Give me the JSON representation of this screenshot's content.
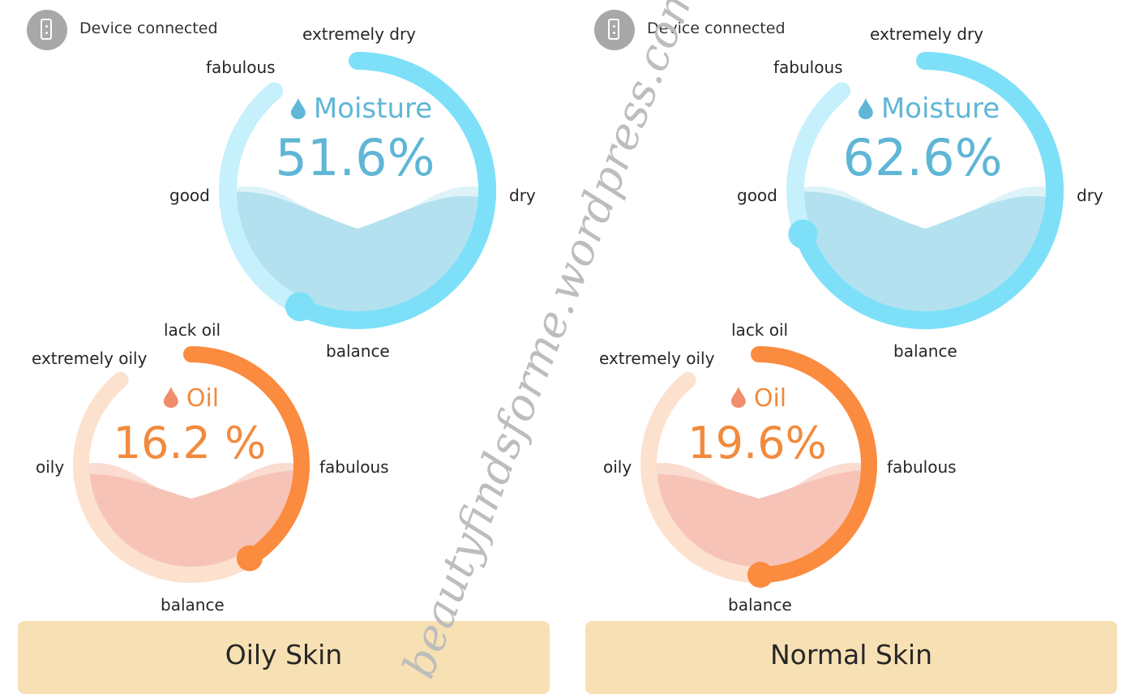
{
  "status": {
    "device_text": "Device connected"
  },
  "watermark": "beautyfindsforme.wordpress.com",
  "colors": {
    "moisture_accent": "#7de0f8",
    "moisture_track": "#c6f0fb",
    "moisture_text": "#5fb6d6",
    "moisture_water": "#b3e1ef",
    "oil_accent": "#fb8b3f",
    "oil_track": "#fde1cf",
    "oil_text": "#f28a3d",
    "oil_water": "#f7c3b7",
    "result_bg": "#f7e0b3"
  },
  "panels": [
    {
      "moisture": {
        "title": "Moisture",
        "value_text": "51.6%",
        "value": 51.6,
        "labels": {
          "top": "extremely dry",
          "top_left": "fabulous",
          "left": "good",
          "right": "dry",
          "bottom": "balance"
        }
      },
      "oil": {
        "title": "Oil",
        "value_text": "16.2 %",
        "value": 16.2,
        "labels": {
          "top": "lack oil",
          "top_left": "extremely oily",
          "left": "oily",
          "right": "fabulous",
          "bottom": "balance"
        }
      },
      "result": "Oily Skin"
    },
    {
      "moisture": {
        "title": "Moisture",
        "value_text": "62.6%",
        "value": 62.6,
        "labels": {
          "top": "extremely dry",
          "top_left": "fabulous",
          "left": "good",
          "right": "dry",
          "bottom": "balance"
        }
      },
      "oil": {
        "title": "Oil",
        "value_text": "19.6%",
        "value": 19.6,
        "labels": {
          "top": "lack oil",
          "top_left": "extremely oily",
          "left": "oily",
          "right": "fabulous",
          "bottom": "balance"
        }
      },
      "result": "Normal Skin"
    }
  ]
}
